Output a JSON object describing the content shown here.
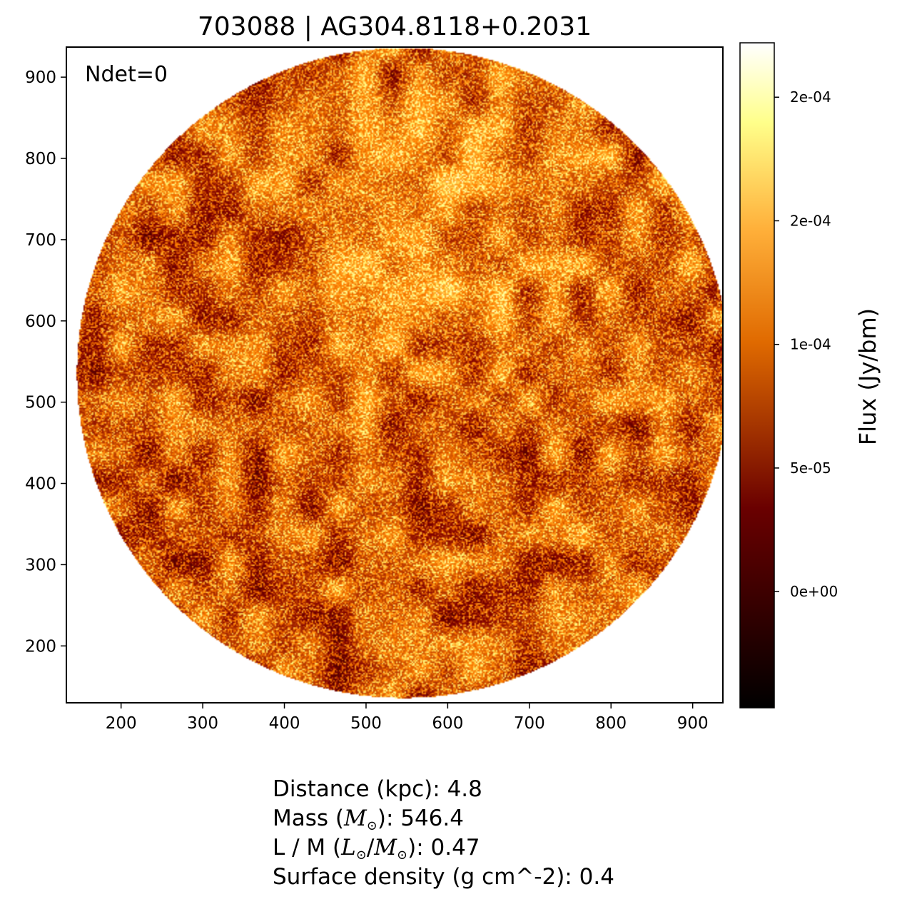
{
  "chart_data": {
    "type": "heatmap",
    "title": "703088 | AG304.8118+0.2031",
    "annotation": "Ndet=0",
    "xlim": [
      133,
      937
    ],
    "ylim": [
      130,
      937
    ],
    "x_ticks": [
      200,
      300,
      400,
      500,
      600,
      700,
      800,
      900
    ],
    "y_ticks": [
      200,
      300,
      400,
      500,
      600,
      700,
      800,
      900
    ],
    "field": {
      "shape": "circle",
      "center": [
        546,
        536
      ],
      "radius": 400
    },
    "colorbar": {
      "label": "Flux (Jy/bm)",
      "colormap": "afmhot",
      "min": -4.7e-05,
      "max": 0.000222,
      "ticks": [
        {
          "value": 0.0,
          "label": "0e+00"
        },
        {
          "value": 5e-05,
          "label": "5e-05"
        },
        {
          "value": 0.0001,
          "label": "1e-04"
        },
        {
          "value": 0.00015,
          "label": "2e-04"
        },
        {
          "value": 0.0002,
          "label": "2e-04"
        }
      ]
    },
    "bright_region": {
      "center": [
        620,
        700
      ],
      "note": "brightest emission near (620, 700)"
    }
  },
  "info": {
    "distance_label": "Distance (kpc): 4.8",
    "mass_prefix": "Mass (",
    "mass_suffix": "): 546.4",
    "lm_prefix": "L / M (",
    "lm_suffix": "): 0.47",
    "surface_label": "Surface density (g cm^-2): 0.4"
  }
}
